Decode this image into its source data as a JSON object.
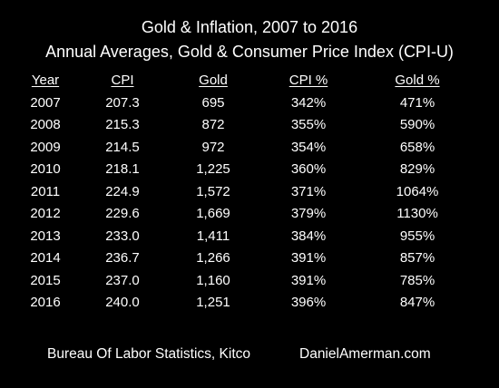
{
  "title": "Gold & Inflation, 2007 to 2016",
  "subtitle": "Annual Averages, Gold & Consumer Price Index (CPI-U)",
  "table": {
    "headers": [
      "Year",
      "CPI",
      "Gold",
      "CPI %",
      "Gold %"
    ],
    "rows": [
      [
        "2007",
        "207.3",
        "695",
        "342%",
        "471%"
      ],
      [
        "2008",
        "215.3",
        "872",
        "355%",
        "590%"
      ],
      [
        "2009",
        "214.5",
        "972",
        "354%",
        "658%"
      ],
      [
        "2010",
        "218.1",
        "1,225",
        "360%",
        "829%"
      ],
      [
        "2011",
        "224.9",
        "1,572",
        "371%",
        "1064%"
      ],
      [
        "2012",
        "229.6",
        "1,669",
        "379%",
        "1130%"
      ],
      [
        "2013",
        "233.0",
        "1,411",
        "384%",
        "955%"
      ],
      [
        "2014",
        "236.7",
        "1,266",
        "391%",
        "857%"
      ],
      [
        "2015",
        "237.0",
        "1,160",
        "391%",
        "785%"
      ],
      [
        "2016",
        "240.0",
        "1,251",
        "396%",
        "847%"
      ]
    ]
  },
  "footer": {
    "source": "Bureau Of Labor Statistics, Kitco",
    "site": "DanielAmerman.com"
  },
  "colors": {
    "background": "#000000",
    "text": "#ffffff"
  }
}
